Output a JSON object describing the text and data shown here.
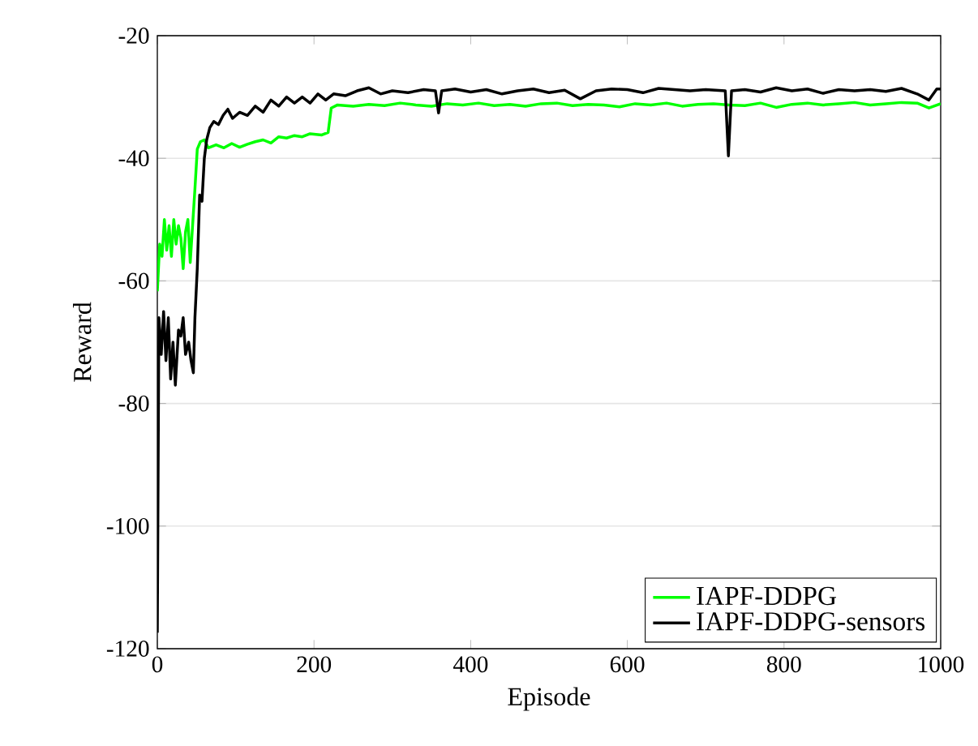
{
  "chart_data": {
    "type": "line",
    "xlabel": "Episode",
    "ylabel": "Reward",
    "xlim": [
      0,
      1000
    ],
    "ylim": [
      -120,
      -20
    ],
    "xticks": [
      0,
      200,
      400,
      600,
      800,
      1000
    ],
    "yticks": [
      -120,
      -100,
      -80,
      -60,
      -40,
      -20
    ],
    "grid": "y",
    "legend": "bottom right",
    "line_style": "solid",
    "marker": "none",
    "x": [
      0,
      3,
      6,
      9,
      12,
      15,
      18,
      21,
      24,
      27,
      30,
      33,
      36,
      39,
      42,
      45,
      48,
      51,
      55,
      60,
      65,
      75,
      85,
      95,
      105,
      115,
      125,
      135,
      145,
      155,
      165,
      175,
      185,
      195,
      210,
      218,
      222,
      230,
      250,
      270,
      290,
      310,
      330,
      350,
      370,
      390,
      410,
      430,
      450,
      470,
      490,
      510,
      530,
      550,
      570,
      590,
      610,
      630,
      650,
      670,
      690,
      710,
      730,
      750,
      770,
      790,
      810,
      830,
      850,
      870,
      890,
      910,
      930,
      950,
      970,
      985,
      1000
    ],
    "series": [
      {
        "name": "IAPF-DDPG",
        "color": "#00ff00",
        "values": [
          -61.7,
          -54,
          -56,
          -50,
          -55,
          -51,
          -56,
          -50,
          -54,
          -51,
          -53,
          -58,
          -52,
          -50,
          -57,
          -51,
          -45,
          -38.5,
          -37.3,
          -37,
          -38.3,
          -37.8,
          -38.3,
          -37.6,
          -38.2,
          -37.7,
          -37.3,
          -37,
          -37.5,
          -36.5,
          -36.7,
          -36.3,
          -36.5,
          -36,
          -36.2,
          -35.8,
          -31.8,
          -31.3,
          -31.5,
          -31.2,
          -31.4,
          -31,
          -31.3,
          -31.5,
          -31.1,
          -31.3,
          -31,
          -31.4,
          -31.2,
          -31.5,
          -31.1,
          -31,
          -31.4,
          -31.2,
          -31.3,
          -31.6,
          -31.1,
          -31.3,
          -31,
          -31.5,
          -31.2,
          -31.1,
          -31.3,
          -31.4,
          -31,
          -31.7,
          -31.2,
          -31,
          -31.3,
          -31.1,
          -30.9,
          -31.3,
          -31.1,
          -30.9,
          -31,
          -31.8,
          -31.1
        ]
      },
      {
        "name": "IAPF-DDPG-sensors",
        "color": "#000000",
        "x": [
          0,
          2,
          5,
          8,
          11,
          14,
          17,
          20,
          23,
          27,
          30,
          33,
          36,
          40,
          43,
          46,
          48,
          51,
          54,
          57,
          60,
          63,
          67,
          72,
          78,
          84,
          90,
          96,
          105,
          115,
          125,
          135,
          145,
          155,
          165,
          175,
          185,
          195,
          205,
          215,
          225,
          240,
          255,
          270,
          285,
          300,
          320,
          340,
          355,
          359,
          363,
          380,
          400,
          420,
          440,
          460,
          480,
          500,
          520,
          540,
          560,
          580,
          600,
          620,
          640,
          660,
          680,
          700,
          725,
          729,
          733,
          750,
          770,
          790,
          810,
          830,
          850,
          870,
          890,
          910,
          930,
          950,
          970,
          985,
          995,
          1000
        ],
        "values": [
          -117.4,
          -66,
          -72,
          -65,
          -73,
          -66,
          -76,
          -70,
          -77,
          -68,
          -69,
          -66,
          -72,
          -70,
          -73,
          -75,
          -66,
          -58,
          -46,
          -47,
          -40,
          -37,
          -35,
          -34,
          -34.5,
          -33,
          -32,
          -33.5,
          -32.5,
          -33,
          -31.5,
          -32.5,
          -30.5,
          -31.5,
          -30,
          -31,
          -30,
          -31,
          -29.5,
          -30.5,
          -29.5,
          -29.8,
          -29,
          -28.5,
          -29.5,
          -29,
          -29.3,
          -28.8,
          -29,
          -32.6,
          -29,
          -28.7,
          -29.2,
          -28.8,
          -29.5,
          -29,
          -28.7,
          -29.3,
          -28.9,
          -30.3,
          -29,
          -28.7,
          -28.8,
          -29.3,
          -28.6,
          -28.8,
          -29,
          -28.8,
          -29,
          -39.6,
          -29,
          -28.8,
          -29.2,
          -28.5,
          -29,
          -28.7,
          -29.4,
          -28.8,
          -29,
          -28.8,
          -29.1,
          -28.6,
          -29.5,
          -30.5,
          -28.7,
          -28.7
        ]
      }
    ]
  }
}
